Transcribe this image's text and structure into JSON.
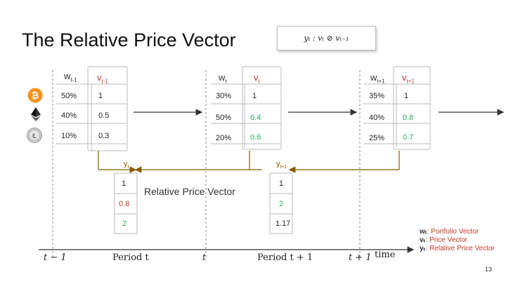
{
  "title": "The Relative Price Vector",
  "formula": "yₜ : vₜ ⊘ vₜ₋₁",
  "coins": [
    "bitcoin-icon",
    "ethereum-icon",
    "litecoin-icon"
  ],
  "periods": [
    {
      "w_label": "w",
      "w_sub": "t-1",
      "v_label": "v",
      "v_sub": "t-1",
      "rows": [
        {
          "w": "50%",
          "v": "1"
        },
        {
          "w": "40%",
          "v": "0.5"
        },
        {
          "w": "10%",
          "v": "0.3"
        }
      ]
    },
    {
      "w_label": "w",
      "w_sub": "t",
      "v_label": "v",
      "v_sub": "t",
      "rows": [
        {
          "w": "30%",
          "v": "1"
        },
        {
          "w": "50%",
          "v": "0.4"
        },
        {
          "w": "20%",
          "v": "0.6"
        }
      ]
    },
    {
      "w_label": "w",
      "w_sub": "t+1",
      "v_label": "v",
      "v_sub": "t+1",
      "rows": [
        {
          "w": "35%",
          "v": "1"
        },
        {
          "w": "40%",
          "v": "0.8"
        },
        {
          "w": "25%",
          "v": "0.7"
        }
      ]
    }
  ],
  "y_vectors": [
    {
      "label": "y",
      "sub": "t",
      "values": [
        "1",
        "0.8",
        "2"
      ]
    },
    {
      "label": "y",
      "sub": "t+1",
      "values": [
        "1",
        "2",
        "1.17"
      ]
    }
  ],
  "relative_price_label": "Relative Price Vector",
  "axis": {
    "ticks": [
      "t − 1",
      "t",
      "t + 1"
    ],
    "periods": [
      "Period t",
      "Period t + 1"
    ],
    "time_label": "time"
  },
  "legend": [
    {
      "symbol": "wₜ",
      "text": ": Portfolio Vector"
    },
    {
      "symbol": "vₜ",
      "text": ": Price Vector"
    },
    {
      "symbol": "yₜ",
      "text": ": Relative Price Vector"
    }
  ],
  "page_number": "13",
  "colors": {
    "price": "#c0392b",
    "relative_arrow": "#8a5a00",
    "highlight": "#27ae60",
    "bitcoin": "#f7931a"
  }
}
